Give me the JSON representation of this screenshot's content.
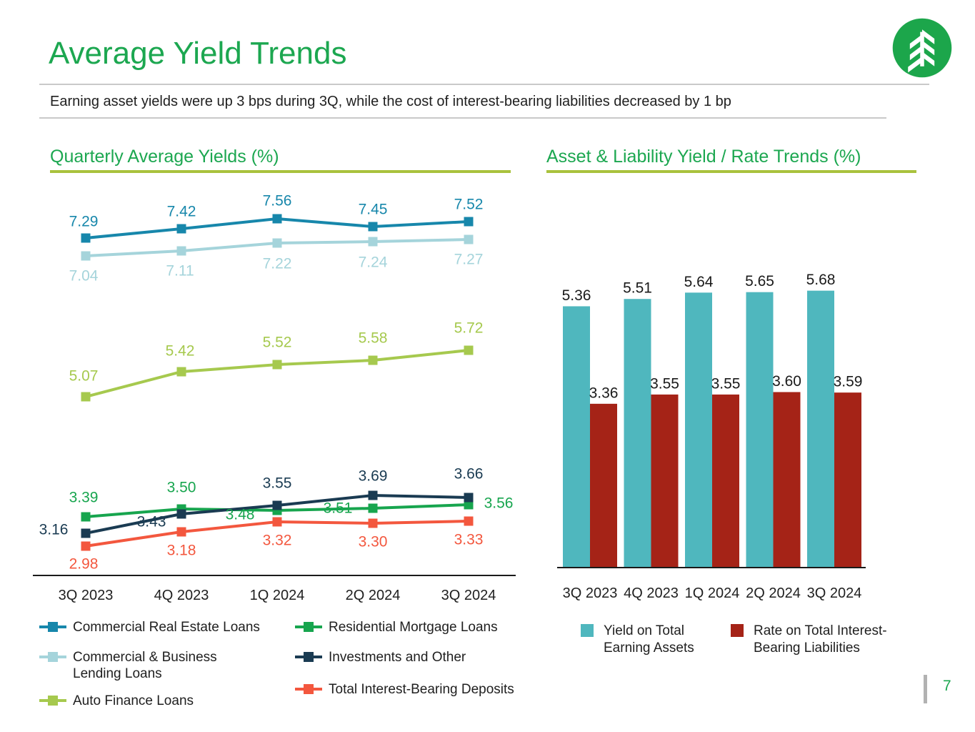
{
  "slide": {
    "title": "Average Yield Trends",
    "subtitle": "Earning asset yields were up 3 bps during 3Q, while the cost of interest-bearing liabilities decreased by 1 bp",
    "page_number": "7",
    "logo": "evergreen-tree-bank-logo",
    "accent_green": "#1CA750",
    "accent_olive": "#A9C23D"
  },
  "chart_data": [
    {
      "type": "line",
      "title": "Quarterly Average Yields (%)",
      "categories": [
        "3Q 2023",
        "4Q 2023",
        "1Q 2024",
        "2Q 2024",
        "3Q 2024"
      ],
      "series": [
        {
          "name": "Commercial Real Estate Loans",
          "color": "#1787AB",
          "values": [
            7.29,
            7.42,
            7.56,
            7.45,
            7.52
          ]
        },
        {
          "name": "Commercial & Business Lending Loans",
          "color": "#A5D4DB",
          "values": [
            7.04,
            7.11,
            7.22,
            7.24,
            7.27
          ]
        },
        {
          "name": "Auto Finance Loans",
          "color": "#A6C94E",
          "values": [
            5.07,
            5.42,
            5.52,
            5.58,
            5.72
          ]
        },
        {
          "name": "Residential Mortgage Loans",
          "color": "#17A54E",
          "values": [
            3.39,
            3.5,
            3.48,
            3.51,
            3.56
          ]
        },
        {
          "name": "Investments and Other",
          "color": "#1A3B52",
          "values": [
            3.16,
            3.43,
            3.55,
            3.69,
            3.66
          ]
        },
        {
          "name": "Total Interest-Bearing Deposits",
          "color": "#F3573E",
          "values": [
            2.98,
            3.18,
            3.32,
            3.3,
            3.33
          ]
        }
      ],
      "marker": "square",
      "data_labels": true,
      "value_format": "0.00",
      "y_axis_visible": false,
      "legend_position": "bottom"
    },
    {
      "type": "bar",
      "title": "Asset & Liability Yield / Rate Trends (%)",
      "categories": [
        "3Q 2023",
        "4Q 2023",
        "1Q 2024",
        "2Q 2024",
        "3Q 2024"
      ],
      "series": [
        {
          "name": "Yield on Total Earning Assets",
          "color": "#4FB7BE",
          "values": [
            5.36,
            5.51,
            5.64,
            5.65,
            5.68
          ]
        },
        {
          "name": "Rate on Total Interest-Bearing Liabilities",
          "color": "#A52317",
          "values": [
            3.36,
            3.55,
            3.55,
            3.6,
            3.59
          ]
        }
      ],
      "data_labels": true,
      "value_format": "0.00",
      "y_axis_visible": false,
      "legend_position": "bottom"
    }
  ]
}
